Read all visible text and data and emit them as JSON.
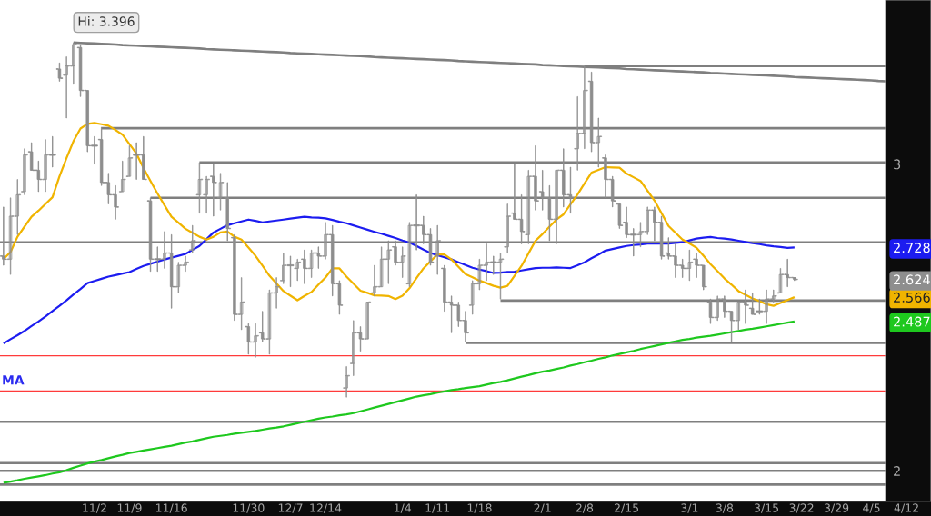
{
  "chart_data": {
    "type": "candlestick",
    "color": "#8e8e8e",
    "categories": [
      null,
      null,
      null,
      null,
      null,
      null,
      null,
      null,
      null,
      null,
      null,
      null,
      null,
      "11/2",
      null,
      null,
      null,
      null,
      "11/9",
      null,
      null,
      null,
      null,
      null,
      "11/16",
      null,
      null,
      null,
      null,
      null,
      null,
      null,
      null,
      null,
      null,
      "11/30",
      null,
      null,
      null,
      null,
      null,
      "12/7",
      null,
      null,
      null,
      null,
      "12/14",
      null,
      null,
      null,
      null,
      null,
      null,
      null,
      null,
      null,
      null,
      "1/4",
      null,
      null,
      null,
      null,
      "1/11",
      null,
      null,
      null,
      null,
      null,
      "1/18",
      null,
      null,
      null,
      null,
      null,
      null,
      null,
      null,
      "2/1",
      null,
      null,
      null,
      null,
      null,
      "2/8",
      null,
      null,
      null,
      null,
      null,
      "2/15",
      null,
      null,
      null,
      null,
      null,
      null,
      null,
      null,
      "3/1",
      null,
      null,
      null,
      null,
      "3/8",
      null,
      null,
      null,
      null,
      null,
      "3/15",
      null,
      null,
      null,
      null,
      "3/22",
      null,
      null,
      null,
      null,
      "3/29",
      null,
      null,
      null,
      null,
      "4/5",
      null,
      null,
      null,
      null,
      "4/12",
      null,
      null,
      null
    ],
    "ohlc": [
      [
        2.7,
        2.86,
        2.67,
        2.69
      ],
      [
        2.69,
        2.89,
        2.64,
        2.83
      ],
      [
        2.83,
        2.95,
        2.77,
        2.9
      ],
      [
        2.91,
        3.05,
        2.9,
        3.03
      ],
      [
        3.04,
        3.07,
        2.98,
        2.98
      ],
      [
        2.98,
        3.01,
        2.91,
        2.95
      ],
      [
        2.95,
        3.08,
        2.91,
        3.03
      ],
      [
        3.03,
        3.09,
        2.99,
        3.03
      ],
      [
        3.31,
        3.33,
        3.27,
        3.28
      ],
      [
        3.29,
        3.35,
        3.15,
        3.32
      ],
      [
        3.32,
        3.396,
        3.26,
        3.39
      ],
      [
        3.38,
        3.39,
        3.22,
        3.24
      ],
      [
        3.24,
        3.24,
        3.04,
        3.06
      ],
      [
        3.06,
        3.09,
        3.0,
        3.06
      ],
      [
        3.08,
        3.12,
        2.93,
        2.94
      ],
      [
        2.94,
        2.97,
        2.87,
        2.9
      ],
      [
        2.9,
        2.93,
        2.82,
        2.86
      ],
      [
        2.91,
        3.01,
        2.91,
        2.95
      ],
      [
        2.96,
        3.06,
        2.96,
        3.02
      ],
      [
        3.03,
        3.07,
        2.95,
        3.03
      ],
      [
        3.03,
        3.09,
        2.95,
        2.95
      ],
      [
        2.88,
        2.89,
        2.65,
        2.69
      ],
      [
        2.69,
        2.73,
        2.65,
        2.69
      ],
      [
        2.69,
        2.78,
        2.66,
        2.71
      ],
      [
        2.71,
        2.77,
        2.53,
        2.6
      ],
      [
        2.6,
        2.68,
        2.58,
        2.67
      ],
      [
        2.67,
        2.7,
        2.65,
        2.68
      ],
      [
        2.72,
        2.8,
        2.71,
        2.75
      ],
      [
        2.9,
        3.005,
        2.84,
        2.95
      ],
      [
        2.9,
        2.96,
        2.84,
        2.95
      ],
      [
        2.96,
        3.0,
        2.83,
        2.94
      ],
      [
        2.89,
        2.97,
        2.85,
        2.94
      ],
      [
        2.89,
        2.94,
        2.75,
        2.79
      ],
      [
        2.76,
        2.77,
        2.49,
        2.51
      ],
      [
        2.51,
        2.63,
        2.46,
        2.55
      ],
      [
        2.47,
        2.48,
        2.38,
        2.42
      ],
      [
        2.42,
        2.48,
        2.37,
        2.44
      ],
      [
        2.45,
        2.52,
        2.42,
        2.43
      ],
      [
        2.43,
        2.59,
        2.38,
        2.58
      ],
      [
        2.58,
        2.63,
        2.53,
        2.6
      ],
      [
        2.62,
        2.71,
        2.61,
        2.67
      ],
      [
        2.67,
        2.7,
        2.6,
        2.67
      ],
      [
        2.66,
        2.69,
        2.62,
        2.68
      ],
      [
        2.69,
        2.72,
        2.61,
        2.66
      ],
      [
        2.66,
        2.72,
        2.63,
        2.71
      ],
      [
        2.71,
        2.73,
        2.66,
        2.7
      ],
      [
        2.7,
        2.81,
        2.69,
        2.77
      ],
      [
        2.77,
        2.8,
        2.57,
        2.61
      ],
      [
        2.61,
        2.62,
        2.51,
        2.54
      ],
      [
        2.27,
        2.34,
        2.24,
        2.31
      ],
      [
        2.35,
        2.49,
        2.31,
        2.45
      ],
      [
        2.45,
        2.47,
        2.39,
        2.43
      ],
      [
        2.43,
        2.55,
        2.43,
        2.55
      ],
      [
        2.58,
        2.67,
        2.57,
        2.6
      ],
      [
        2.6,
        2.73,
        2.6,
        2.69
      ],
      [
        2.69,
        2.75,
        2.61,
        2.72
      ],
      [
        2.73,
        2.75,
        2.67,
        2.68
      ],
      [
        2.68,
        2.73,
        2.63,
        2.7
      ],
      [
        2.61,
        2.81,
        2.6,
        2.8
      ],
      [
        2.8,
        2.9,
        2.72,
        2.8
      ],
      [
        2.8,
        2.83,
        2.74,
        2.77
      ],
      [
        2.77,
        2.79,
        2.67,
        2.68
      ],
      [
        2.7,
        2.8,
        2.64,
        2.75
      ],
      [
        2.66,
        2.67,
        2.52,
        2.55
      ],
      [
        2.55,
        2.57,
        2.45,
        2.54
      ],
      [
        2.54,
        2.55,
        2.47,
        2.49
      ],
      [
        2.49,
        2.52,
        2.42,
        2.45
      ],
      [
        2.54,
        2.62,
        2.51,
        2.61
      ],
      [
        2.61,
        2.69,
        2.59,
        2.67
      ],
      [
        2.67,
        2.74,
        2.62,
        2.68
      ],
      [
        2.68,
        2.7,
        2.64,
        2.68
      ],
      [
        2.68,
        2.71,
        2.56,
        2.69
      ],
      [
        2.73,
        2.87,
        2.71,
        2.83
      ],
      [
        2.84,
        3.0,
        2.82,
        2.82
      ],
      [
        2.82,
        2.9,
        2.74,
        2.78
      ],
      [
        2.77,
        2.98,
        2.74,
        2.96
      ],
      [
        2.96,
        3.06,
        2.85,
        2.88
      ],
      [
        2.91,
        2.98,
        2.85,
        2.89
      ],
      [
        2.89,
        2.93,
        2.75,
        2.82
      ],
      [
        2.82,
        2.98,
        2.74,
        2.98
      ],
      [
        2.98,
        3.05,
        2.86,
        2.9
      ],
      [
        2.9,
        2.99,
        2.84,
        2.89
      ],
      [
        3.05,
        3.22,
        2.98,
        3.1
      ],
      [
        3.1,
        3.32,
        3.05,
        3.24
      ],
      [
        3.27,
        3.3,
        3.04,
        3.07
      ],
      [
        3.07,
        3.15,
        2.99,
        3.09
      ],
      [
        3.02,
        3.03,
        2.89,
        2.95
      ],
      [
        2.95,
        2.96,
        2.86,
        2.88
      ],
      [
        2.87,
        2.87,
        2.79,
        2.8
      ],
      [
        2.81,
        2.86,
        2.76,
        2.77
      ],
      [
        2.77,
        2.79,
        2.7,
        2.77
      ],
      [
        2.77,
        2.81,
        2.73,
        2.78
      ],
      [
        2.78,
        2.86,
        2.77,
        2.85
      ],
      [
        2.85,
        2.86,
        2.75,
        2.81
      ],
      [
        2.81,
        2.83,
        2.69,
        2.7
      ],
      [
        2.71,
        2.76,
        2.69,
        2.7
      ],
      [
        2.7,
        2.74,
        2.63,
        2.67
      ],
      [
        2.67,
        2.69,
        2.63,
        2.66
      ],
      [
        2.66,
        2.72,
        2.62,
        2.68
      ],
      [
        2.69,
        2.71,
        2.63,
        2.67
      ],
      [
        2.67,
        2.67,
        2.59,
        2.6
      ],
      [
        2.55,
        2.56,
        2.48,
        2.5
      ],
      [
        2.5,
        2.57,
        2.49,
        2.56
      ],
      [
        2.56,
        2.57,
        2.5,
        2.52
      ],
      [
        2.52,
        2.52,
        2.42,
        2.49
      ],
      [
        2.49,
        2.55,
        2.46,
        2.55
      ],
      [
        2.55,
        2.59,
        2.48,
        2.54
      ],
      [
        2.53,
        2.58,
        2.51,
        2.51
      ],
      [
        2.52,
        2.56,
        2.51,
        2.52
      ],
      [
        2.52,
        2.59,
        2.48,
        2.56
      ],
      [
        2.56,
        2.59,
        2.55,
        2.57
      ],
      [
        2.58,
        2.66,
        2.58,
        2.64
      ],
      [
        2.64,
        2.69,
        2.6,
        2.63
      ],
      [
        2.63,
        2.63,
        2.62,
        2.624
      ],
      null,
      null,
      null,
      null,
      null,
      null,
      null,
      null,
      null,
      null,
      null,
      null,
      null,
      null,
      null,
      null,
      null,
      null,
      null
    ],
    "series": [
      {
        "type": "line",
        "color": "#7f7f7f",
        "values": [
          null,
          null,
          null,
          null,
          null,
          null,
          null,
          null,
          null,
          null,
          3.396,
          3.395,
          3.394,
          3.393,
          3.392,
          3.391,
          3.39,
          3.388,
          3.387,
          3.386,
          3.385,
          3.384,
          3.383,
          3.382,
          3.381,
          3.38,
          3.379,
          3.378,
          3.377,
          3.375,
          3.374,
          3.373,
          3.372,
          3.371,
          3.37,
          3.369,
          3.368,
          3.367,
          3.366,
          3.365,
          3.364,
          3.362,
          3.361,
          3.36,
          3.359,
          3.358,
          3.357,
          3.356,
          3.355,
          3.354,
          3.353,
          3.352,
          3.351,
          3.349,
          3.348,
          3.347,
          3.346,
          3.345,
          3.344,
          3.343,
          3.342,
          3.341,
          3.34,
          3.339,
          3.338,
          3.336,
          3.335,
          3.334,
          3.333,
          3.332,
          3.331,
          3.33,
          3.329,
          3.328,
          3.327,
          3.326,
          3.325,
          3.323,
          3.322,
          3.321,
          3.32,
          3.319,
          3.318,
          3.317,
          3.316,
          3.315,
          3.314,
          3.313,
          3.312,
          3.31,
          3.309,
          3.308,
          3.307,
          3.306,
          3.305,
          3.304,
          3.303,
          3.302,
          3.301,
          3.3,
          3.299,
          3.297,
          3.296,
          3.295,
          3.294,
          3.293,
          3.292,
          3.291,
          3.29,
          3.289,
          3.288,
          3.287,
          3.286,
          3.284,
          3.283,
          3.282,
          3.281,
          3.28,
          3.279,
          3.278,
          3.277,
          3.276,
          3.275,
          3.274,
          3.273,
          3.271,
          3.27,
          null,
          null,
          null,
          null,
          null,
          null
        ]
      },
      {
        "type": "line",
        "color": "#7f7f7f",
        "values": [
          null,
          null,
          null,
          null,
          null,
          null,
          null,
          null,
          null,
          null,
          null,
          null,
          null,
          null,
          null,
          null,
          null,
          null,
          null,
          null,
          null,
          null,
          null,
          null,
          null,
          null,
          null,
          null,
          null,
          null,
          null,
          null,
          null,
          null,
          null,
          null,
          null,
          null,
          null,
          null,
          null,
          null,
          null,
          null,
          null,
          null,
          null,
          null,
          null,
          null,
          null,
          null,
          null,
          null,
          null,
          null,
          null,
          null,
          null,
          null,
          null,
          null,
          null,
          null,
          null,
          null,
          null,
          null,
          null,
          null,
          null,
          null,
          null,
          null,
          null,
          null,
          null,
          null,
          null,
          null,
          null,
          null,
          null,
          3.32,
          3.32,
          3.32,
          3.32,
          3.32,
          3.32,
          3.32,
          3.32,
          3.32,
          3.32,
          3.32,
          3.32,
          3.32,
          3.32,
          3.32,
          3.32,
          3.32,
          3.32,
          3.32,
          3.32,
          3.32,
          3.32,
          3.32,
          3.32,
          3.32,
          3.32,
          3.32,
          3.32,
          3.32,
          3.32,
          3.32,
          3.32,
          3.32,
          3.32,
          3.32,
          3.32,
          3.32,
          3.32,
          3.32,
          3.32,
          3.32,
          3.32,
          3.32,
          3.32,
          null,
          null,
          null,
          null,
          null,
          null
        ]
      },
      {
        "type": "line",
        "color": "#7f7f7f",
        "values": [
          null,
          null,
          null,
          null,
          null,
          null,
          null,
          null,
          null,
          null,
          null,
          null,
          null,
          null,
          3.117,
          3.117,
          3.117,
          3.117,
          3.117,
          3.117,
          3.117,
          3.117,
          3.117,
          3.117,
          3.117,
          3.117,
          3.117,
          3.117,
          3.117,
          3.117,
          3.117,
          3.117,
          3.117,
          3.117,
          3.117,
          3.117,
          3.117,
          3.117,
          3.117,
          3.117,
          3.117,
          3.117,
          3.117,
          3.117,
          3.117,
          3.117,
          3.117,
          3.117,
          3.117,
          3.117,
          3.117,
          3.117,
          3.117,
          3.117,
          3.117,
          3.117,
          3.117,
          3.117,
          3.117,
          3.117,
          3.117,
          3.117,
          3.117,
          3.117,
          3.117,
          3.117,
          3.117,
          3.117,
          3.117,
          3.117,
          3.117,
          3.117,
          3.117,
          3.117,
          3.117,
          3.117,
          3.117,
          3.117,
          3.117,
          3.117,
          3.117,
          3.117,
          3.117,
          3.117,
          3.117,
          3.117,
          3.117,
          3.117,
          3.117,
          3.117,
          3.117,
          3.117,
          3.117,
          3.117,
          3.117,
          3.117,
          3.117,
          3.117,
          3.117,
          3.117,
          3.117,
          3.117,
          3.117,
          3.117,
          3.117,
          3.117,
          3.117,
          3.117,
          3.117,
          3.117,
          3.117,
          3.117,
          3.117,
          3.117,
          3.117,
          3.117,
          3.117,
          3.117,
          3.117,
          3.117,
          3.117,
          3.117,
          3.117,
          3.117,
          3.117,
          3.117,
          3.117,
          null,
          null,
          null,
          null,
          null,
          null
        ]
      },
      {
        "type": "line",
        "color": "#7f7f7f",
        "values": [
          null,
          null,
          null,
          null,
          null,
          null,
          null,
          null,
          null,
          null,
          null,
          null,
          null,
          null,
          null,
          null,
          null,
          null,
          null,
          null,
          null,
          null,
          null,
          null,
          null,
          null,
          null,
          null,
          3.005,
          3.005,
          3.005,
          3.005,
          3.005,
          3.005,
          3.005,
          3.005,
          3.005,
          3.005,
          3.005,
          3.005,
          3.005,
          3.005,
          3.005,
          3.005,
          3.005,
          3.005,
          3.005,
          3.005,
          3.005,
          3.005,
          3.005,
          3.005,
          3.005,
          3.005,
          3.005,
          3.005,
          3.005,
          3.005,
          3.005,
          3.005,
          3.005,
          3.005,
          3.005,
          3.005,
          3.005,
          3.005,
          3.005,
          3.005,
          3.005,
          3.005,
          3.005,
          3.005,
          3.005,
          3.005,
          3.005,
          3.005,
          3.005,
          3.005,
          3.005,
          3.005,
          3.005,
          3.005,
          3.005,
          3.005,
          3.005,
          3.005,
          3.005,
          3.005,
          3.005,
          3.005,
          3.005,
          3.005,
          3.005,
          3.005,
          3.005,
          3.005,
          3.005,
          3.005,
          3.005,
          3.005,
          3.005,
          3.005,
          3.005,
          3.005,
          3.005,
          3.005,
          3.005,
          3.005,
          3.005,
          3.005,
          3.005,
          3.005,
          3.005,
          3.005,
          3.005,
          3.005,
          3.005,
          3.005,
          3.005,
          3.005,
          3.005,
          3.005,
          3.005,
          3.005,
          3.005,
          3.005,
          3.005,
          null,
          null,
          null,
          null,
          null,
          null
        ]
      },
      {
        "type": "line",
        "color": "#7f7f7f",
        "values": [
          null,
          null,
          null,
          null,
          null,
          null,
          null,
          null,
          null,
          null,
          null,
          null,
          null,
          null,
          null,
          null,
          null,
          null,
          null,
          null,
          null,
          2.89,
          2.89,
          2.89,
          2.89,
          2.89,
          2.89,
          2.89,
          2.89,
          2.89,
          2.89,
          2.89,
          2.89,
          2.89,
          2.89,
          2.89,
          2.89,
          2.89,
          2.89,
          2.89,
          2.89,
          2.89,
          2.89,
          2.89,
          2.89,
          2.89,
          2.89,
          2.89,
          2.89,
          2.89,
          2.89,
          2.89,
          2.89,
          2.89,
          2.89,
          2.89,
          2.89,
          2.89,
          2.89,
          2.89,
          2.89,
          2.89,
          2.89,
          2.89,
          2.89,
          2.89,
          2.89,
          2.89,
          2.89,
          2.89,
          2.89,
          2.89,
          2.89,
          2.89,
          2.89,
          2.89,
          2.89,
          2.89,
          2.89,
          2.89,
          2.89,
          2.89,
          2.89,
          2.89,
          2.89,
          2.89,
          2.89,
          2.89,
          2.89,
          2.89,
          2.89,
          2.89,
          2.89,
          2.89,
          2.89,
          2.89,
          2.89,
          2.89,
          2.89,
          2.89,
          2.89,
          2.89,
          2.89,
          2.89,
          2.89,
          2.89,
          2.89,
          2.89,
          2.89,
          2.89,
          2.89,
          2.89,
          2.89,
          2.89,
          2.89,
          2.89,
          2.89,
          2.89,
          2.89,
          2.89,
          2.89,
          2.89,
          2.89,
          2.89,
          2.89,
          2.89,
          2.89,
          null,
          null,
          null,
          null,
          null,
          null
        ]
      },
      {
        "type": "line",
        "color": "#7f7f7f",
        "values": [
          null,
          null,
          null,
          null,
          null,
          null,
          null,
          null,
          null,
          null,
          null,
          null,
          null,
          null,
          null,
          null,
          null,
          null,
          null,
          null,
          null,
          null,
          null,
          null,
          null,
          null,
          null,
          null,
          null,
          null,
          null,
          null,
          null,
          null,
          null,
          null,
          null,
          null,
          null,
          null,
          null,
          null,
          null,
          null,
          null,
          null,
          null,
          null,
          null,
          null,
          null,
          null,
          null,
          null,
          null,
          null,
          null,
          null,
          null,
          null,
          null,
          null,
          null,
          null,
          null,
          null,
          null,
          null,
          null,
          null,
          null,
          2.555,
          2.555,
          2.555,
          2.555,
          2.555,
          2.555,
          2.555,
          2.555,
          2.555,
          2.555,
          2.555,
          2.555,
          2.555,
          2.555,
          2.555,
          2.555,
          2.555,
          2.555,
          2.555,
          2.555,
          2.555,
          2.555,
          2.555,
          2.555,
          2.555,
          2.555,
          2.555,
          2.555,
          2.555,
          2.555,
          2.555,
          2.555,
          2.555,
          2.555,
          2.555,
          2.555,
          2.555,
          2.555,
          2.555,
          2.555,
          2.555,
          2.555,
          2.555,
          2.555,
          2.555,
          2.555,
          2.555,
          2.555,
          2.555,
          2.555,
          2.555,
          2.555,
          2.555,
          2.555,
          2.555,
          2.555,
          null,
          null,
          null,
          null,
          null,
          null
        ]
      },
      {
        "type": "line",
        "color": "#7f7f7f",
        "values": [
          null,
          null,
          null,
          null,
          null,
          null,
          null,
          null,
          null,
          null,
          null,
          null,
          null,
          null,
          null,
          null,
          null,
          null,
          null,
          null,
          null,
          null,
          null,
          null,
          null,
          null,
          null,
          null,
          null,
          null,
          null,
          null,
          null,
          null,
          null,
          null,
          null,
          null,
          null,
          null,
          null,
          null,
          null,
          null,
          null,
          null,
          null,
          null,
          null,
          null,
          null,
          null,
          null,
          null,
          null,
          null,
          null,
          null,
          null,
          null,
          null,
          null,
          null,
          null,
          null,
          null,
          2.417,
          2.417,
          2.417,
          2.417,
          2.417,
          2.417,
          2.417,
          2.417,
          2.417,
          2.417,
          2.417,
          2.417,
          2.417,
          2.417,
          2.417,
          2.417,
          2.417,
          2.417,
          2.417,
          2.417,
          2.417,
          2.417,
          2.417,
          2.417,
          2.417,
          2.417,
          2.417,
          2.417,
          2.417,
          2.417,
          2.417,
          2.417,
          2.417,
          2.417,
          2.417,
          2.417,
          2.417,
          2.417,
          2.417,
          2.417,
          2.417,
          2.417,
          2.417,
          2.417,
          2.417,
          2.417,
          2.417,
          2.417,
          2.417,
          2.417,
          2.417,
          2.417,
          2.417,
          2.417,
          2.417,
          2.417,
          2.417,
          2.417,
          2.417,
          2.417,
          2.417,
          null,
          null,
          null,
          null,
          null,
          null
        ]
      },
      {
        "type": "line",
        "color": "#1c1cf0",
        "values": [
          2.415,
          2.429,
          2.442,
          2.456,
          2.472,
          2.487,
          2.503,
          2.521,
          2.538,
          2.556,
          2.575,
          2.593,
          2.612,
          2.619,
          2.626,
          2.633,
          2.638,
          2.643,
          2.648,
          2.658,
          2.668,
          2.675,
          2.682,
          2.689,
          2.695,
          2.701,
          2.707,
          2.72,
          2.733,
          2.755,
          2.777,
          2.789,
          2.801,
          2.807,
          2.813,
          2.819,
          2.815,
          2.81,
          2.813,
          2.816,
          2.819,
          2.822,
          2.825,
          2.828,
          2.826,
          2.825,
          2.823,
          2.818,
          2.812,
          2.807,
          2.8,
          2.793,
          2.786,
          2.779,
          2.773,
          2.766,
          2.759,
          2.751,
          2.744,
          2.733,
          2.721,
          2.71,
          2.703,
          2.696,
          2.689,
          2.68,
          2.671,
          2.662,
          2.656,
          2.651,
          2.645,
          2.646,
          2.648,
          2.649,
          2.653,
          2.657,
          2.661,
          2.662,
          2.662,
          2.663,
          2.662,
          2.661,
          2.67,
          2.68,
          2.693,
          2.705,
          2.718,
          2.723,
          2.728,
          2.733,
          2.736,
          2.738,
          2.741,
          2.741,
          2.741,
          2.741,
          2.743,
          2.745,
          2.751,
          2.757,
          2.76,
          2.762,
          2.759,
          2.757,
          2.754,
          2.75,
          2.746,
          2.742,
          2.739,
          2.735,
          2.732,
          2.73,
          2.727,
          2.728,
          null,
          null,
          null,
          null,
          null,
          null,
          null,
          null,
          null,
          null,
          null,
          null,
          null,
          null,
          null,
          null,
          null,
          null,
          null
        ]
      },
      {
        "type": "line",
        "color": "#f0b400",
        "values": [
          2.69,
          2.713,
          2.763,
          2.796,
          2.828,
          2.848,
          2.87,
          2.892,
          2.96,
          3.019,
          3.075,
          3.116,
          3.131,
          3.134,
          3.13,
          3.125,
          3.111,
          3.096,
          3.065,
          3.034,
          2.987,
          2.945,
          2.904,
          2.866,
          2.828,
          2.809,
          2.789,
          2.776,
          2.763,
          2.754,
          2.763,
          2.777,
          2.78,
          2.763,
          2.754,
          2.728,
          2.701,
          2.669,
          2.636,
          2.611,
          2.586,
          2.571,
          2.556,
          2.57,
          2.583,
          2.607,
          2.63,
          2.66,
          2.66,
          2.633,
          2.61,
          2.587,
          2.58,
          2.572,
          2.571,
          2.57,
          2.56,
          2.571,
          2.595,
          2.628,
          2.66,
          2.683,
          2.705,
          2.705,
          2.689,
          2.665,
          2.641,
          2.631,
          2.62,
          2.612,
          2.603,
          2.597,
          2.603,
          2.636,
          2.668,
          2.709,
          2.75,
          2.772,
          2.796,
          2.819,
          2.836,
          2.869,
          2.901,
          2.937,
          2.972,
          2.981,
          2.99,
          2.989,
          2.988,
          2.969,
          2.957,
          2.945,
          2.913,
          2.881,
          2.84,
          2.798,
          2.776,
          2.754,
          2.741,
          2.727,
          2.701,
          2.674,
          2.651,
          2.627,
          2.607,
          2.586,
          2.574,
          2.562,
          2.553,
          2.543,
          2.538,
          2.547,
          2.557,
          2.566,
          null,
          null,
          null,
          null,
          null,
          null,
          null,
          null,
          null,
          null,
          null,
          null,
          null,
          null,
          null,
          null,
          null,
          null,
          null
        ]
      },
      {
        "type": "line",
        "color": "#1ec81e",
        "values": [
          1.961,
          1.965,
          1.969,
          1.974,
          1.978,
          1.982,
          1.986,
          1.991,
          1.995,
          2.002,
          2.01,
          2.017,
          2.024,
          2.03,
          2.035,
          2.041,
          2.047,
          2.052,
          2.058,
          2.062,
          2.066,
          2.07,
          2.074,
          2.078,
          2.082,
          2.087,
          2.092,
          2.096,
          2.101,
          2.106,
          2.111,
          2.114,
          2.117,
          2.121,
          2.124,
          2.127,
          2.13,
          2.134,
          2.138,
          2.141,
          2.145,
          2.15,
          2.155,
          2.16,
          2.165,
          2.17,
          2.174,
          2.177,
          2.181,
          2.184,
          2.188,
          2.194,
          2.2,
          2.206,
          2.212,
          2.218,
          2.224,
          2.23,
          2.236,
          2.242,
          2.246,
          2.25,
          2.255,
          2.259,
          2.263,
          2.266,
          2.27,
          2.273,
          2.276,
          2.281,
          2.286,
          2.29,
          2.295,
          2.301,
          2.307,
          2.312,
          2.318,
          2.323,
          2.327,
          2.332,
          2.337,
          2.343,
          2.348,
          2.354,
          2.359,
          2.365,
          2.37,
          2.376,
          2.381,
          2.386,
          2.391,
          2.397,
          2.402,
          2.407,
          2.412,
          2.417,
          2.422,
          2.427,
          2.43,
          2.434,
          2.437,
          2.44,
          2.444,
          2.448,
          2.452,
          2.456,
          2.46,
          2.463,
          2.467,
          2.471,
          2.475,
          2.479,
          2.483,
          2.487,
          null,
          null,
          null,
          null,
          null,
          null,
          null,
          null,
          null,
          null,
          null,
          null,
          null,
          null,
          null,
          null,
          null,
          null,
          null
        ]
      }
    ],
    "ref_lines": [
      {
        "axis": "y",
        "value": 2.745,
        "color": "#7f7f7f"
      },
      {
        "axis": "y",
        "value": 2.375,
        "color": "#ff3b3b"
      },
      {
        "axis": "y",
        "value": 2.26,
        "color": "#ff3b3b"
      },
      {
        "axis": "y",
        "value": 2.16,
        "color": "#7f7f7f"
      },
      {
        "axis": "y",
        "value": 2.025,
        "color": "#7f7f7f"
      },
      {
        "axis": "y",
        "value": 2.0,
        "color": "#7f7f7f"
      },
      {
        "axis": "y",
        "value": 1.955,
        "color": "#7f7f7f"
      }
    ],
    "annotations": [
      {
        "text": "Hi: 3.396",
        "y": 3.396
      },
      "MA"
    ],
    "ylim": [
      1.9,
      3.535
    ],
    "yticks": [
      2,
      2.487,
      2.566,
      2.624,
      2.728,
      3
    ]
  }
}
